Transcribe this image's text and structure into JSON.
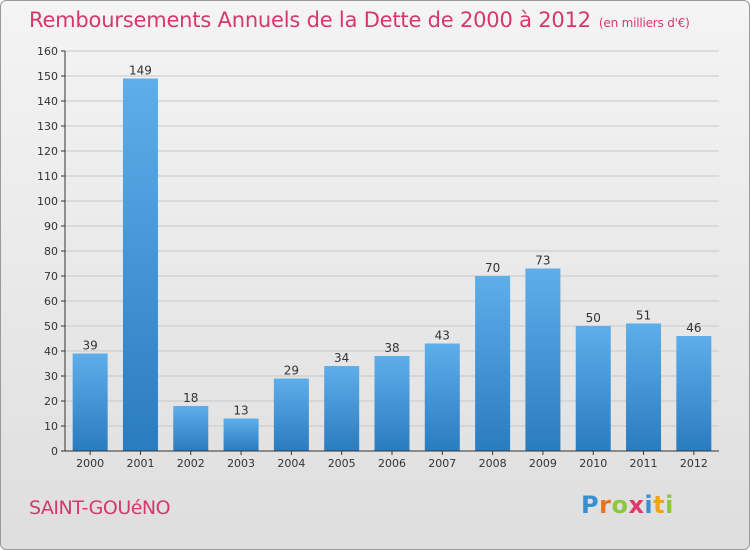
{
  "title": "Remboursements Annuels de la Dette de 2000 à 2012",
  "unit_note": "(en milliers d'€)",
  "commune": "SAINT-GOUéNO",
  "logo": {
    "text": "Proxiti",
    "letter_colors": [
      "#3a8fd0",
      "#e8731e",
      "#8dc63f",
      "#e03a6b",
      "#3a8fd0",
      "#f0a31d",
      "#8dc63f"
    ]
  },
  "colors": {
    "title": "#d6386d",
    "bar_top": "#5eaeea",
    "bar_bottom": "#2a7cc0",
    "grid": "#c8c8c8",
    "axis": "#333333"
  },
  "chart_data": {
    "type": "bar",
    "title": "Remboursements Annuels de la Dette de 2000 à 2012",
    "xlabel": "",
    "ylabel": "",
    "categories": [
      "2000",
      "2001",
      "2002",
      "2003",
      "2004",
      "2005",
      "2006",
      "2007",
      "2008",
      "2009",
      "2010",
      "2011",
      "2012"
    ],
    "values": [
      39,
      149,
      18,
      13,
      29,
      34,
      38,
      43,
      70,
      73,
      50,
      51,
      46
    ],
    "ylim": [
      0,
      160
    ],
    "yticks": [
      0,
      10,
      20,
      30,
      40,
      50,
      60,
      70,
      80,
      90,
      100,
      110,
      120,
      130,
      140,
      150,
      160
    ],
    "grid": true,
    "data_labels": true
  }
}
